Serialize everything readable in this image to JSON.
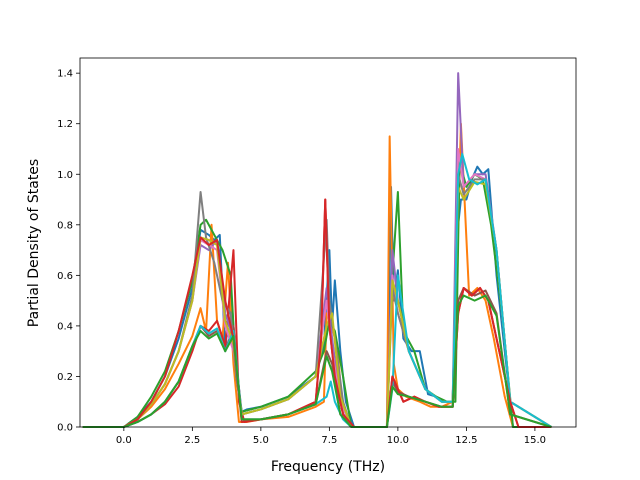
{
  "chart_data": {
    "type": "line",
    "title": "",
    "xlabel": "Frequency (THz)",
    "ylabel": "Partial Density of States",
    "xlim": [
      -1.6,
      16.5
    ],
    "ylim": [
      0.0,
      1.46
    ],
    "xticks": [
      0.0,
      2.5,
      5.0,
      7.5,
      10.0,
      12.5,
      15.0
    ],
    "xtick_labels": [
      "0.0",
      "2.5",
      "5.0",
      "7.5",
      "10.0",
      "12.5",
      "15.0"
    ],
    "yticks": [
      0.0,
      0.2,
      0.4,
      0.6,
      0.8,
      1.0,
      1.2,
      1.4
    ],
    "ytick_labels": [
      "0.0",
      "0.2",
      "0.4",
      "0.6",
      "0.8",
      "1.0",
      "1.2",
      "1.4"
    ],
    "grid": false,
    "legend": "none",
    "series": [
      {
        "color": "#1f77b4",
        "x": [
          -1.5,
          0.0,
          0.5,
          1.0,
          1.5,
          2.0,
          2.5,
          2.8,
          3.1,
          3.3,
          3.5,
          3.7,
          3.9,
          4.1,
          4.3,
          4.5,
          5.0,
          6.0,
          7.0,
          7.3,
          7.5,
          7.6,
          7.7,
          7.9,
          8.1,
          8.4,
          9.6,
          9.75,
          9.85,
          10.0,
          10.2,
          10.5,
          10.8,
          11.1,
          11.4,
          11.7,
          12.0,
          12.15,
          12.3,
          12.5,
          12.7,
          12.9,
          13.1,
          13.3,
          13.6,
          14.0,
          14.2,
          14.4,
          15.6
        ],
        "values": [
          0.0,
          0.0,
          0.04,
          0.1,
          0.2,
          0.35,
          0.55,
          0.78,
          0.76,
          0.74,
          0.76,
          0.3,
          0.55,
          0.25,
          0.06,
          0.07,
          0.08,
          0.12,
          0.2,
          0.32,
          0.7,
          0.4,
          0.58,
          0.3,
          0.1,
          0.0,
          0.0,
          0.95,
          0.5,
          0.62,
          0.35,
          0.3,
          0.3,
          0.13,
          0.12,
          0.1,
          0.1,
          0.75,
          0.9,
          0.9,
          0.98,
          1.03,
          1.0,
          1.02,
          0.6,
          0.2,
          0.0,
          0.0,
          0.0
        ]
      },
      {
        "color": "#ff7f0e",
        "x": [
          -1.5,
          0.0,
          0.5,
          1.0,
          1.5,
          2.0,
          2.5,
          2.8,
          3.0,
          3.2,
          3.4,
          3.6,
          3.8,
          4.0,
          4.2,
          4.5,
          5.0,
          6.0,
          7.0,
          7.3,
          7.4,
          7.6,
          7.8,
          8.0,
          8.4,
          9.6,
          9.7,
          9.85,
          10.0,
          10.3,
          10.8,
          11.2,
          11.6,
          12.0,
          12.15,
          12.3,
          12.6,
          12.9,
          13.2,
          13.5,
          13.9,
          14.2,
          15.6
        ],
        "values": [
          0.0,
          0.0,
          0.03,
          0.08,
          0.15,
          0.25,
          0.36,
          0.47,
          0.38,
          0.8,
          0.42,
          0.35,
          0.65,
          0.25,
          0.02,
          0.02,
          0.03,
          0.04,
          0.08,
          0.1,
          0.45,
          0.4,
          0.3,
          0.05,
          0.0,
          0.0,
          1.15,
          0.25,
          0.15,
          0.12,
          0.1,
          0.08,
          0.08,
          0.1,
          0.6,
          1.2,
          0.52,
          0.55,
          0.5,
          0.35,
          0.12,
          0.0,
          0.0
        ]
      },
      {
        "color": "#2ca02c",
        "x": [
          -1.5,
          0.0,
          0.5,
          1.0,
          1.5,
          2.0,
          2.5,
          2.8,
          3.0,
          3.3,
          3.6,
          3.9,
          4.1,
          4.3,
          5.0,
          6.0,
          7.0,
          7.3,
          7.5,
          7.7,
          8.0,
          8.3,
          9.6,
          9.8,
          10.0,
          10.2,
          10.6,
          11.0,
          11.4,
          11.8,
          12.1,
          12.25,
          12.5,
          12.8,
          13.1,
          13.4,
          13.8,
          14.2,
          15.6
        ],
        "values": [
          0.0,
          0.0,
          0.04,
          0.12,
          0.22,
          0.38,
          0.58,
          0.8,
          0.82,
          0.76,
          0.7,
          0.6,
          0.2,
          0.06,
          0.08,
          0.12,
          0.22,
          0.3,
          0.42,
          0.38,
          0.2,
          0.0,
          0.0,
          0.6,
          0.93,
          0.38,
          0.3,
          0.15,
          0.12,
          0.1,
          0.1,
          1.05,
          0.95,
          1.0,
          0.98,
          0.8,
          0.45,
          0.0,
          0.0
        ]
      },
      {
        "color": "#d62728",
        "x": [
          -1.5,
          0.0,
          0.5,
          1.0,
          1.5,
          2.0,
          2.5,
          2.8,
          3.1,
          3.4,
          3.7,
          4.0,
          4.2,
          4.4,
          5.0,
          6.0,
          7.0,
          7.2,
          7.35,
          7.5,
          7.7,
          8.0,
          8.4,
          9.6,
          9.8,
          10.0,
          10.2,
          10.6,
          11.0,
          11.5,
          12.0,
          12.2,
          12.4,
          12.7,
          13.0,
          13.3,
          13.7,
          14.1,
          14.4,
          15.6
        ],
        "values": [
          0.0,
          0.0,
          0.02,
          0.05,
          0.09,
          0.16,
          0.3,
          0.4,
          0.38,
          0.42,
          0.32,
          0.7,
          0.1,
          0.02,
          0.03,
          0.05,
          0.1,
          0.35,
          0.9,
          0.4,
          0.2,
          0.05,
          0.0,
          0.0,
          0.2,
          0.15,
          0.1,
          0.12,
          0.1,
          0.08,
          0.08,
          0.45,
          0.55,
          0.52,
          0.55,
          0.5,
          0.3,
          0.1,
          0.0,
          0.0
        ]
      },
      {
        "color": "#9467bd",
        "x": [
          -1.5,
          0.0,
          0.5,
          1.0,
          1.5,
          2.0,
          2.5,
          2.8,
          3.1,
          3.4,
          3.7,
          4.0,
          4.3,
          5.0,
          6.0,
          7.0,
          7.4,
          7.6,
          7.9,
          8.3,
          9.6,
          9.8,
          10.0,
          10.4,
          11.0,
          11.6,
          12.0,
          12.2,
          12.4,
          12.8,
          13.2,
          13.6,
          14.1,
          15.6
        ],
        "values": [
          0.0,
          0.0,
          0.03,
          0.09,
          0.17,
          0.3,
          0.5,
          0.72,
          0.7,
          0.74,
          0.45,
          0.35,
          0.05,
          0.07,
          0.11,
          0.2,
          0.55,
          0.35,
          0.1,
          0.0,
          0.0,
          0.7,
          0.5,
          0.3,
          0.15,
          0.1,
          0.1,
          1.4,
          0.95,
          1.0,
          1.0,
          0.7,
          0.1,
          0.0
        ]
      },
      {
        "color": "#8c564b",
        "x": [
          -1.5,
          0.0,
          0.5,
          1.0,
          1.5,
          2.0,
          2.5,
          2.8,
          3.1,
          3.4,
          3.7,
          4.0,
          4.3,
          5.0,
          6.0,
          7.0,
          7.4,
          7.6,
          7.9,
          8.3,
          9.6,
          9.8,
          10.0,
          10.4,
          11.0,
          11.6,
          12.0,
          12.2,
          12.4,
          12.8,
          13.2,
          13.6,
          14.1,
          15.6
        ],
        "values": [
          0.0,
          0.0,
          0.02,
          0.05,
          0.1,
          0.18,
          0.32,
          0.4,
          0.36,
          0.38,
          0.3,
          0.4,
          0.03,
          0.03,
          0.05,
          0.09,
          0.3,
          0.25,
          0.05,
          0.0,
          0.0,
          0.18,
          0.14,
          0.12,
          0.1,
          0.08,
          0.08,
          0.5,
          0.55,
          0.52,
          0.54,
          0.45,
          0.05,
          0.0
        ]
      },
      {
        "color": "#e377c2",
        "x": [
          -1.5,
          0.0,
          0.5,
          1.0,
          1.5,
          2.0,
          2.5,
          2.8,
          3.1,
          3.4,
          3.7,
          4.0,
          4.3,
          5.0,
          6.0,
          7.0,
          7.4,
          7.6,
          7.9,
          8.3,
          9.6,
          9.8,
          10.0,
          10.4,
          11.0,
          11.6,
          12.0,
          12.2,
          12.4,
          12.8,
          13.2,
          13.6,
          14.1,
          15.6
        ],
        "values": [
          0.0,
          0.0,
          0.03,
          0.09,
          0.17,
          0.3,
          0.5,
          0.74,
          0.72,
          0.7,
          0.4,
          0.3,
          0.05,
          0.07,
          0.11,
          0.2,
          0.5,
          0.3,
          0.1,
          0.0,
          0.0,
          0.6,
          0.45,
          0.3,
          0.15,
          0.1,
          0.1,
          1.1,
          0.95,
          1.0,
          0.98,
          0.7,
          0.1,
          0.0
        ]
      },
      {
        "color": "#7f7f7f",
        "x": [
          -1.5,
          0.0,
          0.5,
          1.0,
          1.5,
          2.0,
          2.5,
          2.8,
          3.0,
          3.3,
          3.6,
          3.9,
          4.1,
          4.3,
          5.0,
          6.0,
          7.0,
          7.4,
          7.5,
          7.7,
          8.0,
          8.3,
          9.6,
          9.8,
          10.0,
          10.4,
          11.0,
          11.6,
          12.0,
          12.2,
          12.4,
          12.8,
          13.2,
          13.6,
          14.1,
          15.6
        ],
        "values": [
          0.0,
          0.0,
          0.03,
          0.09,
          0.17,
          0.3,
          0.52,
          0.93,
          0.75,
          0.65,
          0.5,
          0.45,
          0.2,
          0.05,
          0.07,
          0.11,
          0.2,
          0.82,
          0.5,
          0.35,
          0.1,
          0.0,
          0.0,
          0.55,
          0.45,
          0.3,
          0.15,
          0.1,
          0.1,
          1.0,
          0.92,
          0.98,
          0.98,
          0.7,
          0.1,
          0.0
        ]
      },
      {
        "color": "#bcbd22",
        "x": [
          -1.5,
          0.0,
          0.5,
          1.0,
          1.5,
          2.0,
          2.5,
          2.8,
          3.1,
          3.4,
          3.7,
          4.0,
          4.3,
          5.0,
          6.0,
          7.0,
          7.4,
          7.6,
          7.9,
          8.3,
          9.6,
          9.8,
          10.0,
          10.4,
          11.0,
          11.6,
          12.0,
          12.2,
          12.4,
          12.8,
          13.2,
          13.6,
          14.1,
          15.6
        ],
        "values": [
          0.0,
          0.0,
          0.03,
          0.09,
          0.17,
          0.3,
          0.5,
          0.75,
          0.74,
          0.72,
          0.42,
          0.33,
          0.05,
          0.07,
          0.11,
          0.2,
          0.4,
          0.45,
          0.12,
          0.0,
          0.0,
          0.58,
          0.5,
          0.3,
          0.15,
          0.1,
          0.1,
          0.95,
          0.9,
          0.97,
          0.96,
          0.7,
          0.1,
          0.0
        ]
      },
      {
        "color": "#17becf",
        "x": [
          -1.5,
          0.0,
          0.5,
          1.0,
          1.5,
          2.0,
          2.5,
          2.8,
          3.1,
          3.4,
          3.7,
          4.0,
          4.3,
          5.0,
          6.0,
          7.0,
          7.4,
          7.55,
          7.7,
          8.0,
          8.3,
          9.6,
          9.8,
          10.0,
          10.4,
          11.0,
          11.6,
          12.0,
          12.2,
          12.35,
          12.6,
          12.9,
          13.2,
          13.6,
          14.1,
          15.6
        ],
        "values": [
          0.0,
          0.0,
          0.02,
          0.05,
          0.1,
          0.18,
          0.32,
          0.4,
          0.37,
          0.39,
          0.3,
          0.38,
          0.03,
          0.03,
          0.05,
          0.09,
          0.12,
          0.18,
          0.1,
          0.03,
          0.0,
          0.0,
          0.15,
          0.6,
          0.3,
          0.15,
          0.1,
          0.1,
          1.0,
          1.08,
          0.98,
          0.96,
          0.98,
          0.7,
          0.1,
          0.0
        ]
      },
      {
        "color": "#d62728",
        "x": [
          -1.5,
          0.0,
          0.5,
          1.0,
          1.5,
          2.0,
          2.5,
          2.8,
          3.1,
          3.4,
          3.7,
          4.0,
          4.3,
          5.0,
          6.0,
          7.0,
          7.2,
          7.35,
          7.5,
          7.7,
          8.0,
          8.4,
          9.6,
          9.8,
          10.0,
          10.2,
          10.6,
          11.0,
          11.5,
          12.0,
          12.2,
          12.4,
          12.7,
          13.0,
          13.3,
          13.7,
          14.1,
          14.4,
          15.6
        ],
        "values": [
          0.0,
          0.0,
          0.03,
          0.1,
          0.2,
          0.38,
          0.6,
          0.75,
          0.72,
          0.74,
          0.5,
          0.35,
          0.02,
          0.03,
          0.05,
          0.1,
          0.35,
          0.9,
          0.4,
          0.2,
          0.05,
          0.0,
          0.0,
          0.2,
          0.15,
          0.1,
          0.12,
          0.1,
          0.08,
          0.08,
          0.45,
          0.55,
          0.52,
          0.55,
          0.5,
          0.3,
          0.1,
          0.0,
          0.0
        ]
      },
      {
        "color": "#2ca02c",
        "x": [
          -1.5,
          0.0,
          0.5,
          1.0,
          1.5,
          2.0,
          2.5,
          2.8,
          3.1,
          3.4,
          3.7,
          4.0,
          4.3,
          5.0,
          6.0,
          7.0,
          7.4,
          7.6,
          7.9,
          8.3,
          9.6,
          9.8,
          10.0,
          10.4,
          11.0,
          11.6,
          12.0,
          12.2,
          12.4,
          12.8,
          13.2,
          13.6,
          14.1,
          15.6
        ],
        "values": [
          0.0,
          0.0,
          0.02,
          0.05,
          0.1,
          0.18,
          0.32,
          0.38,
          0.35,
          0.37,
          0.3,
          0.36,
          0.03,
          0.03,
          0.05,
          0.09,
          0.28,
          0.22,
          0.05,
          0.0,
          0.0,
          0.16,
          0.13,
          0.12,
          0.1,
          0.08,
          0.08,
          0.48,
          0.52,
          0.5,
          0.52,
          0.44,
          0.05,
          0.0
        ]
      }
    ]
  }
}
